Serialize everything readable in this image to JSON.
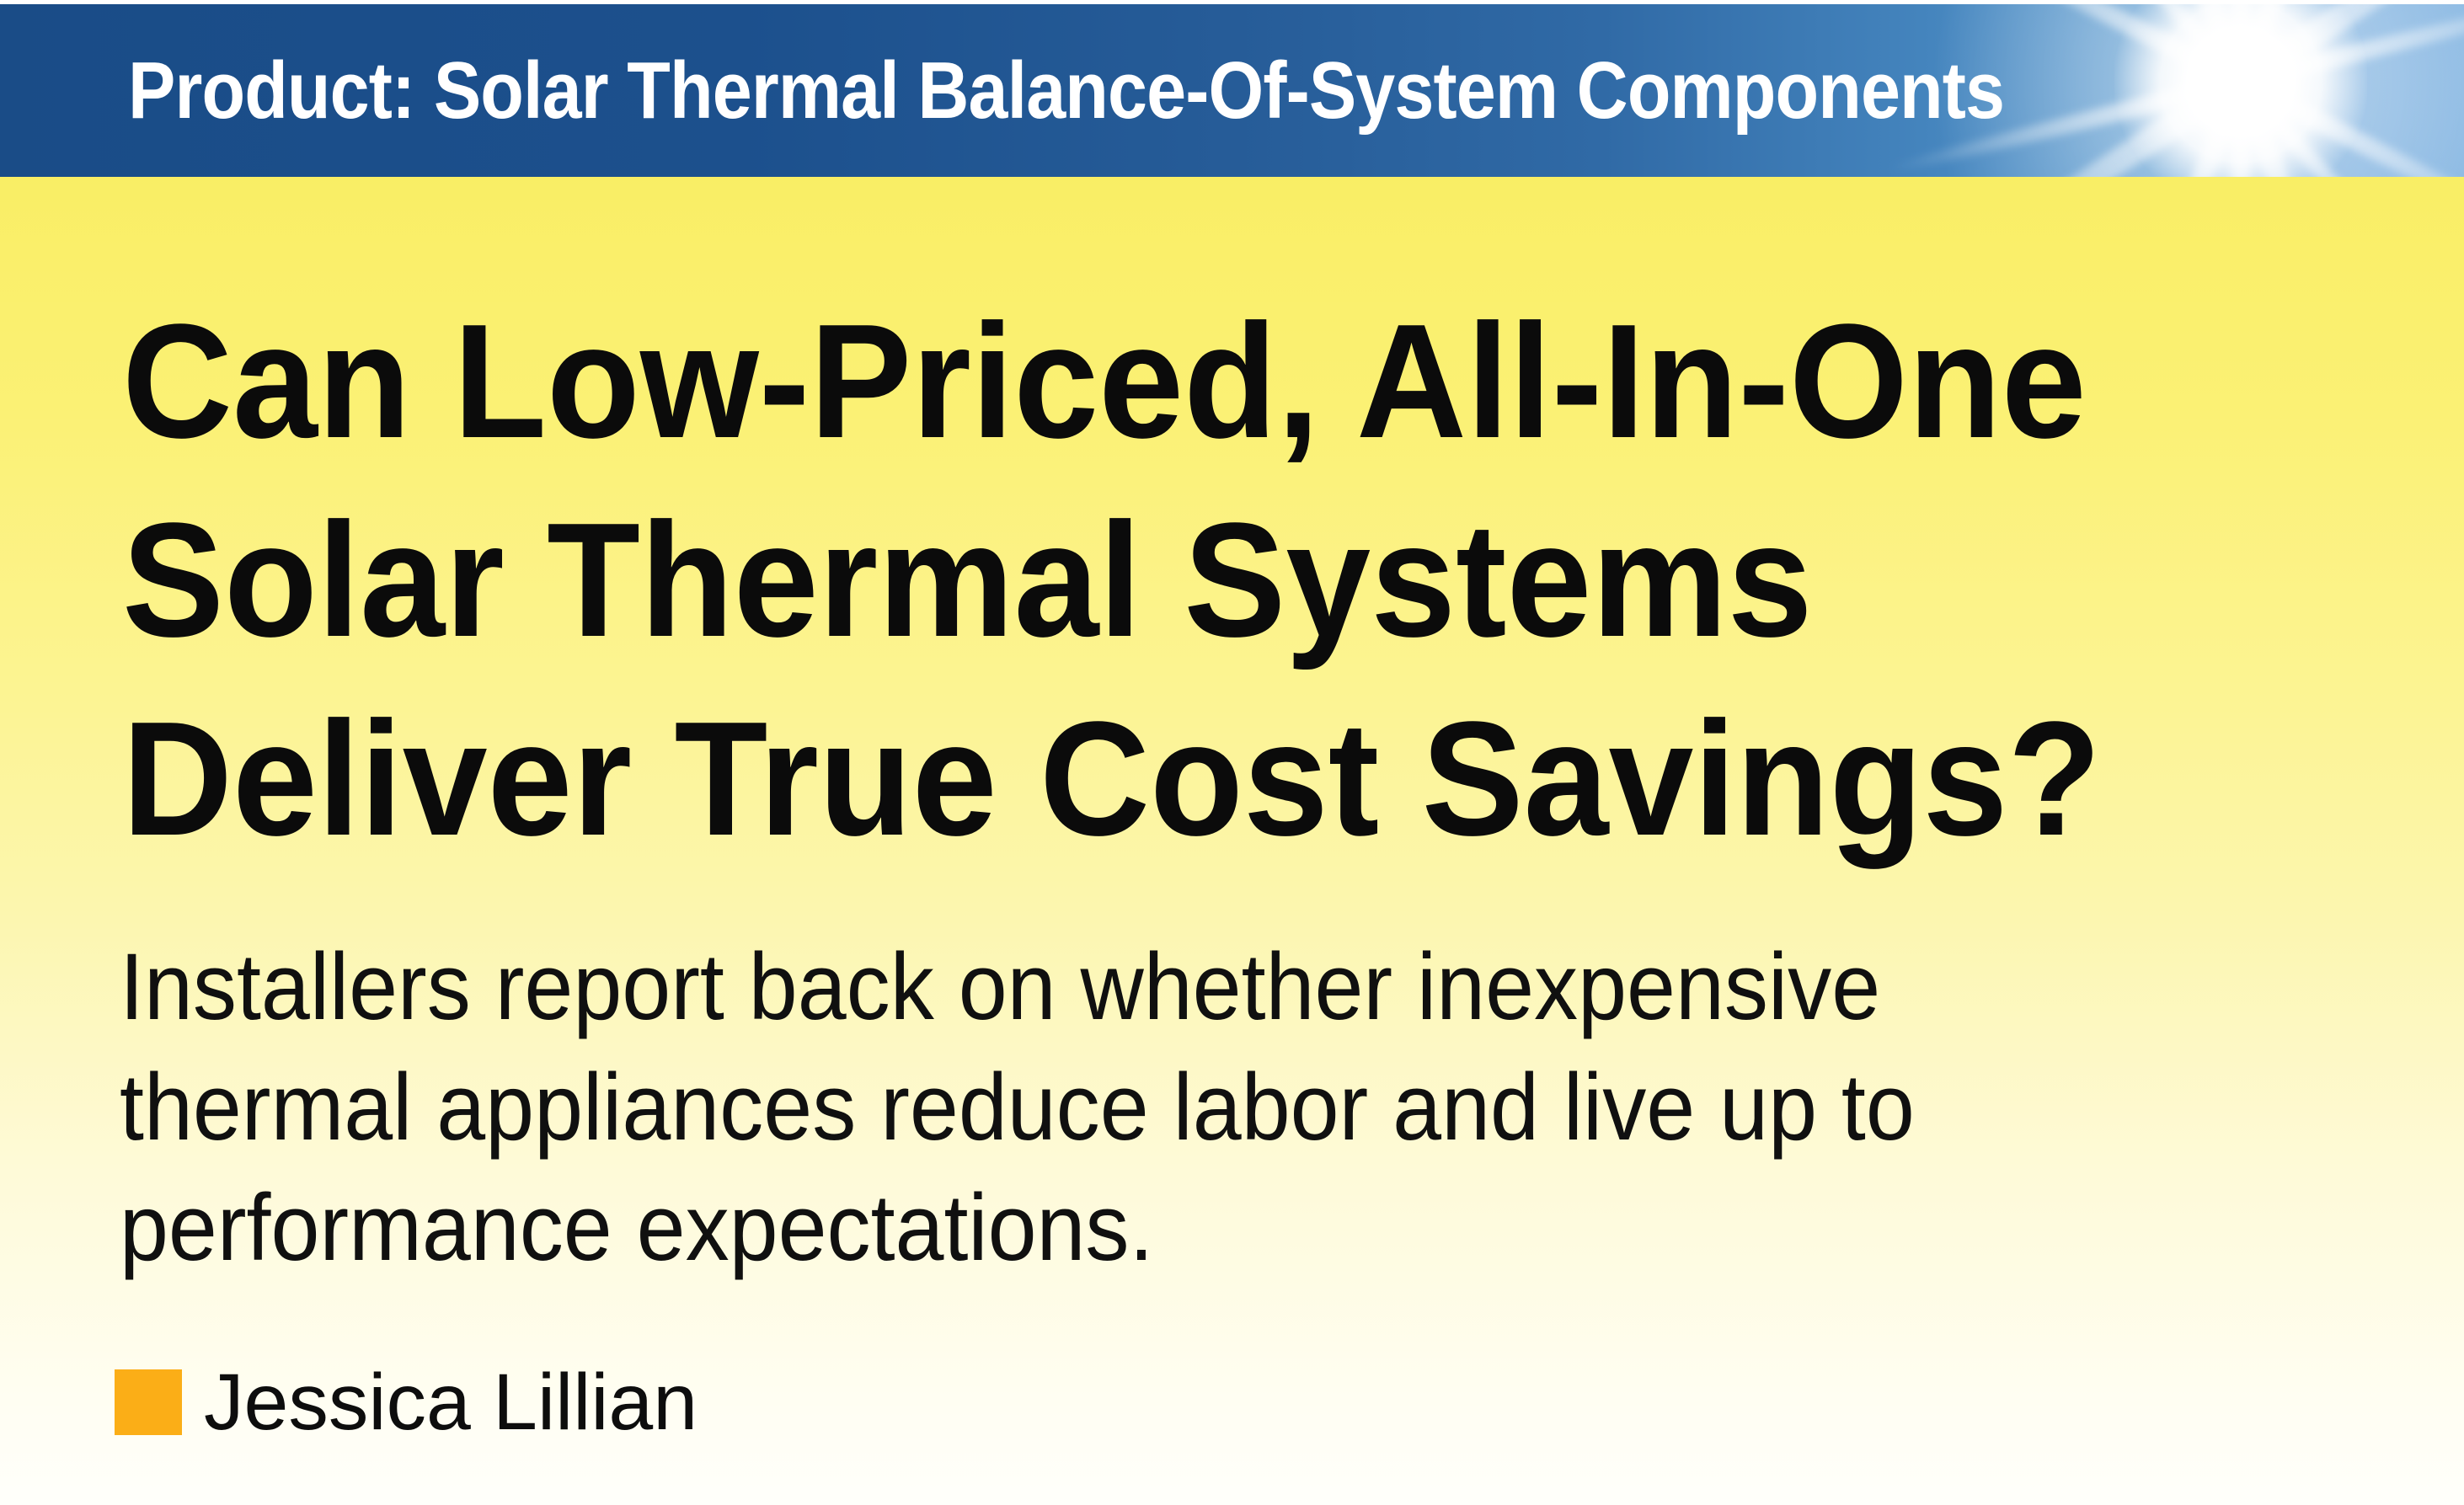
{
  "banner": {
    "kicker": "Product: Solar Thermal Balance-Of-System Components"
  },
  "article": {
    "title_lines": [
      "Can Low-Priced, All-In-One",
      "Solar Thermal Systems",
      "Deliver True Cost Savings?"
    ],
    "subtitle_lines": [
      "Installers report back on whether inexpensive",
      "thermal appliances reduce labor and live up to",
      "performance expectations."
    ],
    "author": "Jessica Lillian"
  },
  "icons": {
    "sunburst": "sunburst-icon"
  },
  "colors": {
    "banner_navy": "#1A4C87",
    "banner_sky": "#7FB2E0",
    "kicker_white": "#FFFFFF",
    "page_yellow_top": "#F9EE65",
    "page_cream_bottom": "#FFFFFB",
    "headline_black": "#0B0B0B",
    "byline_orange": "#FBAE17"
  }
}
